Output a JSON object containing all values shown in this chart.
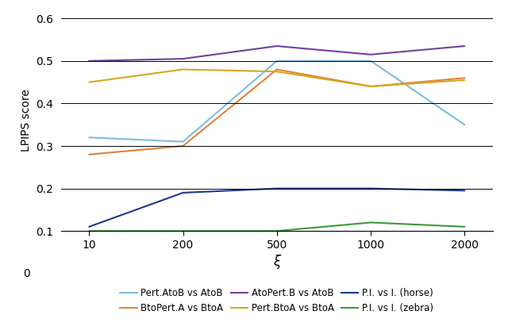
{
  "xi_positions": [
    0,
    1,
    2,
    3,
    4
  ],
  "series": {
    "Pert.AtoB vs AtoB": {
      "values": [
        0.32,
        0.31,
        0.5,
        0.5,
        0.35
      ],
      "color": "#7bbde0",
      "linestyle": "-"
    },
    "BtoPert.A vs BtoA": {
      "values": [
        0.28,
        0.3,
        0.48,
        0.44,
        0.46
      ],
      "color": "#e0823a",
      "linestyle": "-"
    },
    "AtoPert.B vs AtoB": {
      "values": [
        0.5,
        0.505,
        0.535,
        0.515,
        0.535
      ],
      "color": "#7040a0",
      "linestyle": "-"
    },
    "Pert.BtoA vs BtoA": {
      "values": [
        0.45,
        0.48,
        0.475,
        0.44,
        0.455
      ],
      "color": "#d4a820",
      "linestyle": "-"
    },
    "P.I. vs I. (horse)": {
      "values": [
        0.11,
        0.19,
        0.2,
        0.2,
        0.195
      ],
      "color": "#1a3a8c",
      "linestyle": "-"
    },
    "P.I. vs I. (zebra)": {
      "values": [
        0.1,
        0.1,
        0.1,
        0.12,
        0.11
      ],
      "color": "#3a9a3a",
      "linestyle": "-"
    }
  },
  "xlabel": "ξ",
  "ylabel": "LPIPS score",
  "ylim_plot": [
    0.1,
    0.6
  ],
  "ylim_full": [
    0.0,
    0.6
  ],
  "yticks": [
    0.1,
    0.2,
    0.3,
    0.4,
    0.5,
    0.6
  ],
  "xtick_labels": [
    "10",
    "200",
    "500",
    "1000",
    "2000"
  ],
  "legend_order": [
    "Pert.AtoB vs AtoB",
    "BtoPert.A vs BtoA",
    "AtoPert.B vs AtoB",
    "Pert.BtoA vs BtoA",
    "P.I. vs I. (horse)",
    "P.I. vs I. (zebra)"
  ],
  "background_color": "#ffffff",
  "grid_color": "#000000",
  "axis_fontsize": 10,
  "legend_fontsize": 8.5,
  "linewidth": 1.5
}
